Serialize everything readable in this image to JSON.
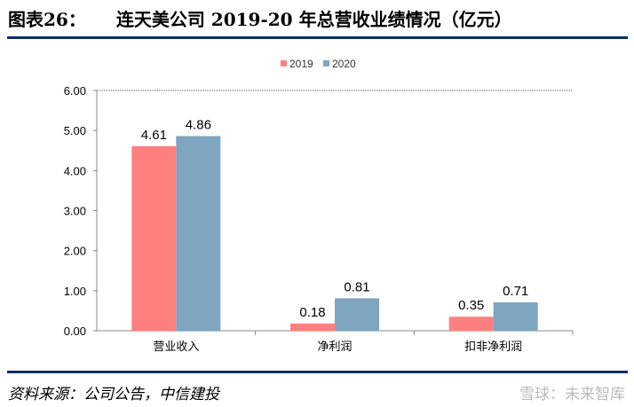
{
  "header": {
    "figure_no": "图表26：",
    "title": "连天美公司 2019-20 年总营收业绩情况（亿元）"
  },
  "footer": {
    "source": "资料来源：公司公告，中信建投",
    "watermark": "雪球：未来智库"
  },
  "colors": {
    "s2019": "#ff7f7f",
    "s2020": "#7fa5c1",
    "rule": "#0b2d6b"
  },
  "chart_data": {
    "type": "bar",
    "categories": [
      "营业收入",
      "净利润",
      "扣非净利润"
    ],
    "series": [
      {
        "name": "2019",
        "values": [
          4.61,
          0.18,
          0.35
        ]
      },
      {
        "name": "2020",
        "values": [
          4.86,
          0.81,
          0.71
        ]
      }
    ],
    "ylim": [
      0,
      6
    ],
    "yticks": [
      "0.00",
      "1.00",
      "2.00",
      "3.00",
      "4.00",
      "5.00",
      "6.00"
    ],
    "data_labels": [
      [
        "4.61",
        "0.18",
        "0.35"
      ],
      [
        "4.86",
        "0.81",
        "0.71"
      ]
    ],
    "legend": "top",
    "grid": false
  }
}
